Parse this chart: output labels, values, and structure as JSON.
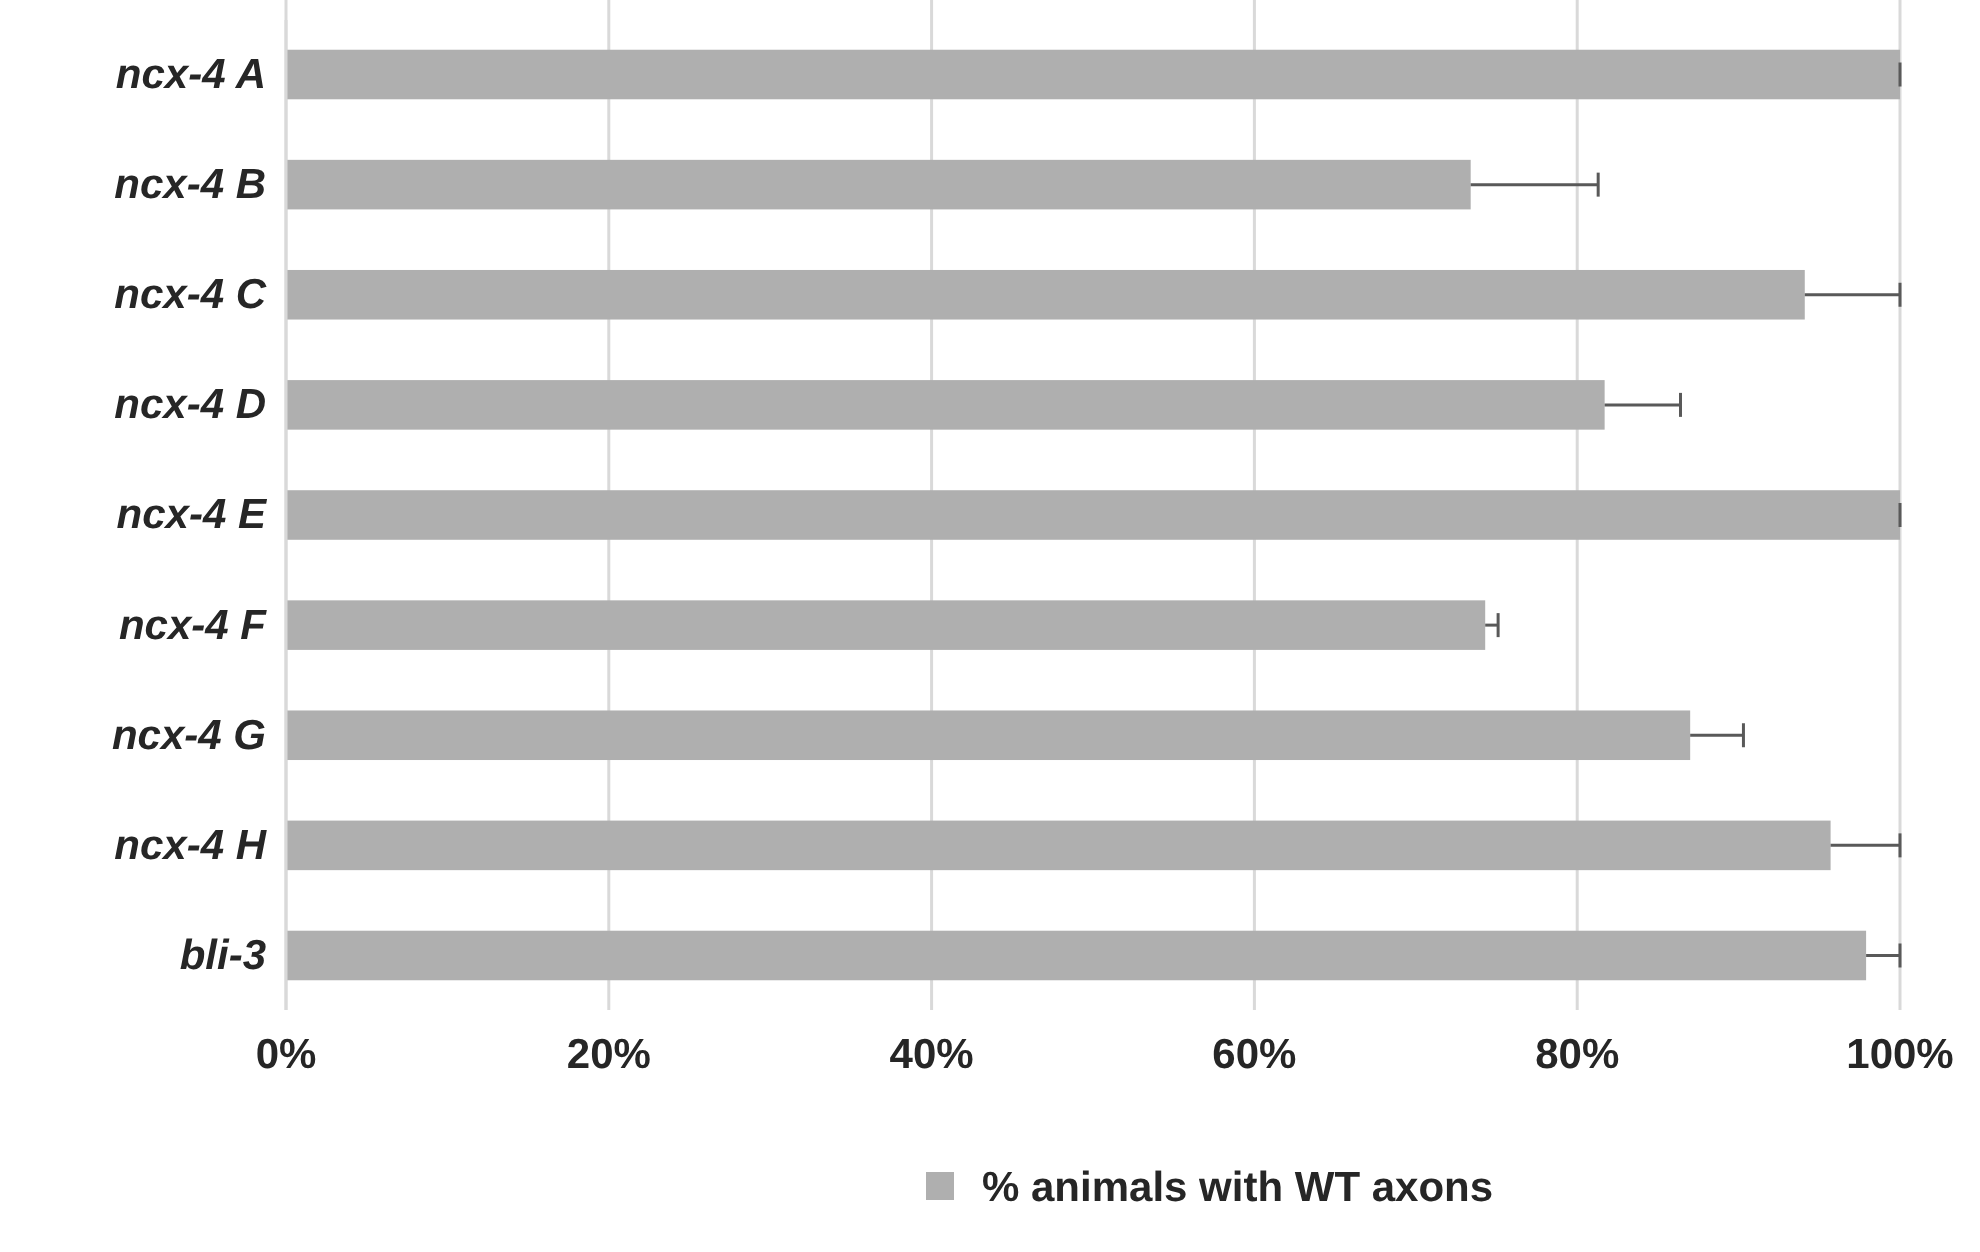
{
  "chart_data": {
    "type": "bar",
    "orientation": "horizontal",
    "categories": [
      "ncx-4 A",
      "ncx-4 B",
      "ncx-4 C",
      "ncx-4 D",
      "ncx-4 E",
      "ncx-4 F",
      "ncx-4 G",
      "ncx-4 H",
      "bli-3"
    ],
    "series": [
      {
        "name": "% animals with WT axons",
        "color": "#afafaf",
        "values": [
          100,
          73.4,
          94.1,
          81.7,
          100,
          74.3,
          87.0,
          95.7,
          97.9
        ],
        "errors": [
          [
            100,
            100
          ],
          [
            73.4,
            81.3
          ],
          [
            94.1,
            100
          ],
          [
            81.7,
            86.4
          ],
          [
            100,
            100
          ],
          [
            74.3,
            75.1
          ],
          [
            87.0,
            90.3
          ],
          [
            95.7,
            100
          ],
          [
            97.9,
            100
          ]
        ]
      }
    ],
    "xlim": [
      0,
      100
    ],
    "xticks": [
      {
        "value": 0,
        "label": "0%"
      },
      {
        "value": 20,
        "label": "20%"
      },
      {
        "value": 40,
        "label": "40%"
      },
      {
        "value": 60,
        "label": "60%"
      },
      {
        "value": 80,
        "label": "80%"
      },
      {
        "value": 100,
        "label": "100%"
      }
    ],
    "grid": "x",
    "legend": "bottom"
  }
}
